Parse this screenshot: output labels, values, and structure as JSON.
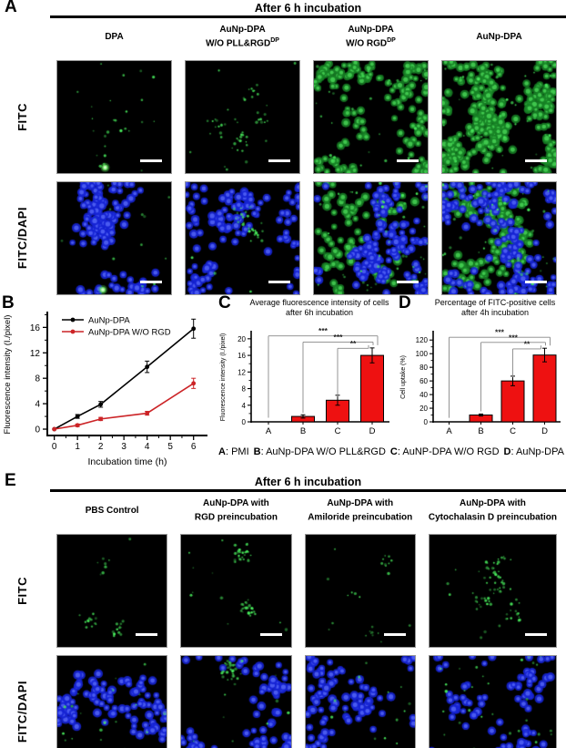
{
  "panelA": {
    "label": "A",
    "title": "After 6 h incubation",
    "row_labels": [
      "FITC",
      "FITC/DAPI"
    ],
    "columns": [
      {
        "line1": "DPA",
        "line2": "",
        "sup": ""
      },
      {
        "line1": "AuNp-DPA",
        "line2": "W/O PLL&RGD",
        "sup": "DP"
      },
      {
        "line1": "AuNp-DPA",
        "line2": "W/O RGD",
        "sup": "DP"
      },
      {
        "line1": "AuNp-DPA",
        "line2": "",
        "sup": ""
      }
    ],
    "images": [
      {
        "name": "a-fitc-dpa",
        "green_dots": 26,
        "green_cells": 0,
        "blue_cells": 0,
        "dot_clusters": null,
        "bright_spot": [
          0.42,
          0.95
        ],
        "seed": 11
      },
      {
        "name": "a-fitc-wo-pll-rgd",
        "green_dots": 55,
        "green_cells": 0,
        "blue_cells": 0,
        "dot_clusters": [
          [
            0.58,
            0.28
          ],
          [
            0.68,
            0.5
          ],
          [
            0.5,
            0.72
          ],
          [
            0.3,
            0.6
          ]
        ],
        "bright_spot": null,
        "seed": 12
      },
      {
        "name": "a-fitc-wo-rgd",
        "green_dots": 30,
        "green_cells": 150,
        "blue_cells": 0,
        "dot_clusters": null,
        "bright_spot": null,
        "seed": 13
      },
      {
        "name": "a-fitc-aunp-dpa",
        "green_dots": 40,
        "green_cells": 300,
        "blue_cells": 0,
        "dot_clusters": null,
        "bright_spot": null,
        "seed": 14
      },
      {
        "name": "a-merge-dpa",
        "green_dots": 12,
        "green_cells": 0,
        "blue_cells": 135,
        "dot_clusters": null,
        "bright_spot": [
          0.4,
          0.96
        ],
        "seed": 15
      },
      {
        "name": "a-merge-wo-pll-rgd",
        "green_dots": 30,
        "green_cells": 0,
        "blue_cells": 115,
        "dot_clusters": [
          [
            0.5,
            0.3
          ],
          [
            0.6,
            0.45
          ]
        ],
        "bright_spot": null,
        "seed": 16
      },
      {
        "name": "a-merge-wo-rgd",
        "green_dots": 50,
        "green_cells": 80,
        "blue_cells": 140,
        "dot_clusters": null,
        "bright_spot": null,
        "seed": 17
      },
      {
        "name": "a-merge-aunp-dpa",
        "green_dots": 40,
        "green_cells": 160,
        "blue_cells": 170,
        "dot_clusters": null,
        "bright_spot": null,
        "seed": 18
      }
    ]
  },
  "panelB": {
    "label": "B"
  },
  "panelC": {
    "label": "C",
    "title_line1": "Average fluorescence intensity of cells",
    "title_line2": "after 6h incubation"
  },
  "panelD": {
    "label": "D",
    "title_line1": "Percentage of FITC-positive cells",
    "title_line2": "after 4h incubation"
  },
  "abcd_legend": [
    {
      "key": "A",
      "desc": ": PMI"
    },
    {
      "key": "B",
      "desc": ": AuNp-DPA W/O PLL&RGD"
    },
    {
      "key": "C",
      "desc": ": AuNP-DPA W/O RGD"
    },
    {
      "key": "D",
      "desc": ": AuNp-DPA"
    }
  ],
  "panelE": {
    "label": "E",
    "title": "After 6 h incubation",
    "row_labels": [
      "FITC",
      "FITC/DAPI"
    ],
    "columns": [
      {
        "line1": "PBS Control",
        "line2": "",
        "sup": ""
      },
      {
        "line1": "AuNp-DPA with",
        "line2": "RGD preincubation",
        "sup": ""
      },
      {
        "line1": "AuNp-DPA with",
        "line2": "Amiloride preincubation",
        "sup": ""
      },
      {
        "line1": "AuNp-DPA with",
        "line2": "Cytochalasin D preincubation",
        "sup": ""
      }
    ],
    "images": [
      {
        "name": "e-fitc-pbs",
        "green_dots": 34,
        "green_cells": 0,
        "blue_cells": 0,
        "dot_clusters": [
          [
            0.3,
            0.75
          ],
          [
            0.55,
            0.85
          ],
          [
            0.4,
            0.3
          ]
        ],
        "bright_spot": null,
        "seed": 21
      },
      {
        "name": "e-fitc-rgd",
        "green_dots": 60,
        "green_cells": 0,
        "blue_cells": 0,
        "dot_clusters": [
          [
            0.55,
            0.18
          ],
          [
            0.6,
            0.65
          ]
        ],
        "bright_spot": null,
        "seed": 22
      },
      {
        "name": "e-fitc-amiloride",
        "green_dots": 26,
        "green_cells": 0,
        "blue_cells": 0,
        "dot_clusters": [
          [
            0.75,
            0.25
          ],
          [
            0.45,
            0.55
          ],
          [
            0.6,
            0.85
          ]
        ],
        "bright_spot": null,
        "seed": 23
      },
      {
        "name": "e-fitc-cyto",
        "green_dots": 75,
        "green_cells": 0,
        "blue_cells": 0,
        "dot_clusters": [
          [
            0.55,
            0.45
          ],
          [
            0.4,
            0.6
          ],
          [
            0.65,
            0.7
          ],
          [
            0.5,
            0.3
          ]
        ],
        "bright_spot": null,
        "seed": 24
      },
      {
        "name": "e-merge-pbs",
        "green_dots": 25,
        "green_cells": 0,
        "blue_cells": 100,
        "dot_clusters": null,
        "bright_spot": null,
        "seed": 25
      },
      {
        "name": "e-merge-rgd",
        "green_dots": 40,
        "green_cells": 0,
        "blue_cells": 105,
        "dot_clusters": [
          [
            0.45,
            0.12
          ]
        ],
        "bright_spot": null,
        "seed": 26
      },
      {
        "name": "e-merge-amiloride",
        "green_dots": 15,
        "green_cells": 0,
        "blue_cells": 105,
        "dot_clusters": null,
        "bright_spot": null,
        "seed": 27
      },
      {
        "name": "e-merge-cyto",
        "green_dots": 35,
        "green_cells": 0,
        "blue_cells": 115,
        "dot_clusters": null,
        "bright_spot": null,
        "seed": 28
      }
    ]
  },
  "chart_data": [
    {
      "id": "chartB",
      "type": "line",
      "xlabel": "Incubation time (h)",
      "ylabel": "Fluorescence intensity (I./pixel)",
      "x": [
        0,
        1,
        2,
        4,
        6
      ],
      "series": [
        {
          "name": "AuNp-DPA",
          "color": "#000000",
          "values": [
            0,
            2.0,
            3.9,
            9.8,
            15.8
          ],
          "errors": [
            0,
            0.3,
            0.45,
            0.9,
            1.5
          ]
        },
        {
          "name": "AuNp-DPA W/O RGD",
          "color": "#cc2427",
          "values": [
            0,
            0.6,
            1.6,
            2.5,
            7.2
          ],
          "errors": [
            0,
            0.2,
            0.25,
            0.3,
            0.8
          ]
        }
      ],
      "xlim": [
        -0.3,
        6.6
      ],
      "ylim": [
        -1,
        18.2
      ],
      "xticks": [
        0,
        1,
        2,
        3,
        4,
        5,
        6
      ],
      "xticks_minor": [
        0.5,
        1.5,
        2.5,
        3.5,
        4.5,
        5.5
      ],
      "yticks": [
        0,
        4,
        8,
        12,
        16
      ],
      "yticks_minor": [
        2,
        6,
        10,
        14,
        18
      ],
      "legend_position": "top-left",
      "grid": false
    },
    {
      "id": "chartC",
      "type": "bar",
      "title": "Average fluorescence intensity of cells after 6h incubation",
      "ylabel": "Fluorescence intensity (I./pixel)",
      "categories": [
        "A",
        "B",
        "C",
        "D"
      ],
      "values": [
        0.1,
        1.3,
        5.2,
        16.0
      ],
      "errors": [
        0,
        0.4,
        1.2,
        1.8
      ],
      "bar_color": "#ee1111",
      "bar_stroke": "#000000",
      "ylim": [
        0,
        21.5
      ],
      "yticks": [
        0,
        4,
        8,
        12,
        16,
        20
      ],
      "yticks_minor": [
        2,
        6,
        10,
        14,
        18
      ],
      "significance": [
        {
          "from": 0,
          "to": 3,
          "height": 20.7,
          "label": "***"
        },
        {
          "from": 1,
          "to": 3,
          "height": 19.2,
          "label": "***"
        },
        {
          "from": 2,
          "to": 3,
          "height": 17.7,
          "label": "**"
        }
      ]
    },
    {
      "id": "chartD",
      "type": "bar",
      "title": "Percentage of FITC-positive cells after 4h incubation",
      "ylabel": "Cell uptake (%)",
      "categories": [
        "A",
        "B",
        "C",
        "D"
      ],
      "values": [
        0.5,
        10,
        60,
        98
      ],
      "errors": [
        0,
        1.5,
        7,
        10
      ],
      "bar_color": "#ee1111",
      "bar_stroke": "#000000",
      "ylim": [
        0,
        131
      ],
      "yticks": [
        0,
        20,
        40,
        60,
        80,
        100,
        120
      ],
      "yticks_minor": [
        10,
        30,
        50,
        70,
        90,
        110
      ],
      "significance": [
        {
          "from": 0,
          "to": 3,
          "height": 124,
          "label": "***"
        },
        {
          "from": 1,
          "to": 3,
          "height": 116.5,
          "label": "***"
        },
        {
          "from": 2,
          "to": 3,
          "height": 107,
          "label": "**"
        }
      ]
    }
  ]
}
